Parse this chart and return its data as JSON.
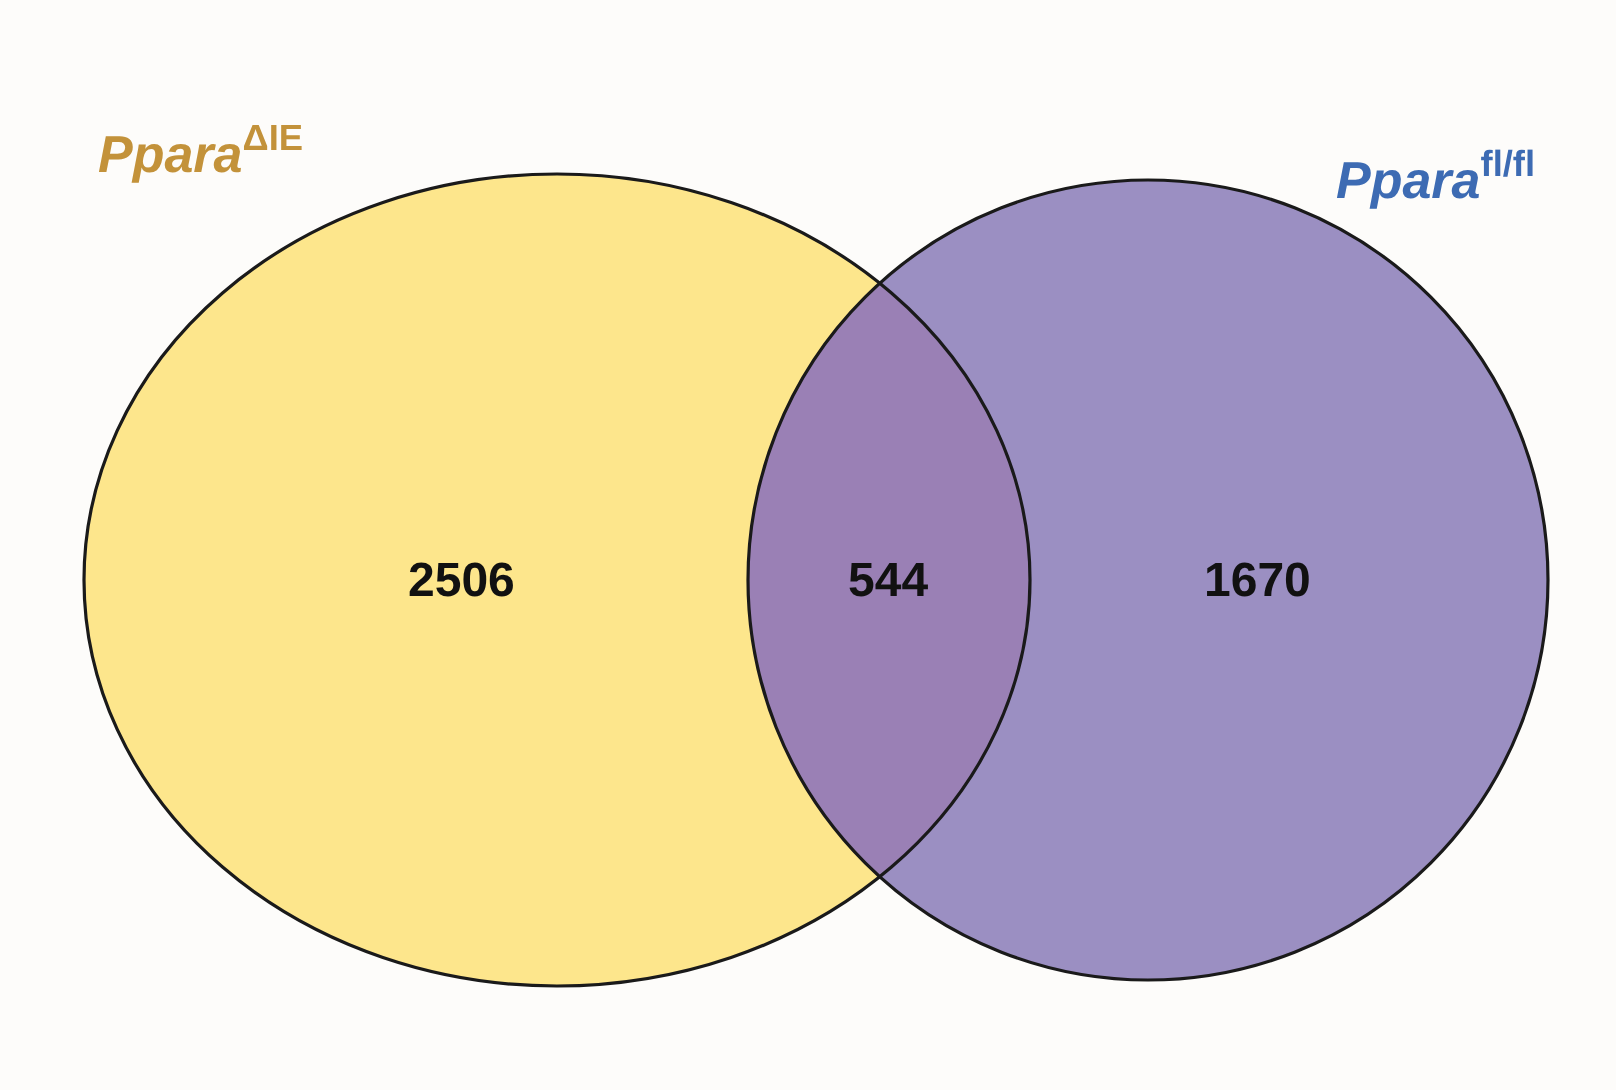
{
  "chart_data": {
    "type": "other",
    "categories": [
      null,
      null,
      null
    ],
    "values": [
      2506,
      544,
      1670
    ],
    "colors": [
      "#fde68c",
      "#9a80b5",
      "#9b8fc2"
    ],
    "data_labels": true,
    "annotations": [
      "Ppara$^{ΔIE}$",
      "Ppara$^{fl/fl}$"
    ]
  }
}
